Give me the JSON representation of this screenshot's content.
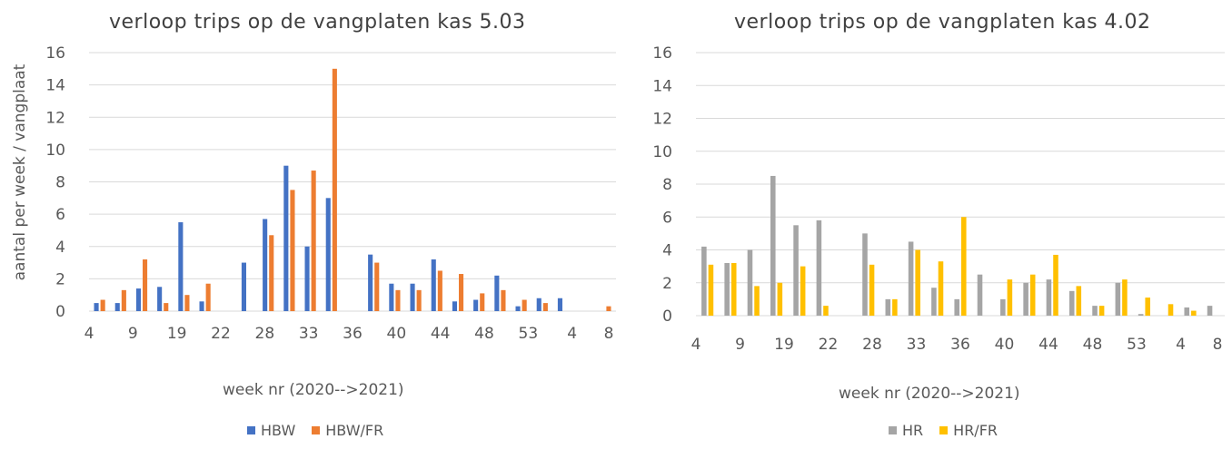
{
  "chart_data": [
    {
      "type": "bar",
      "title": "verloop trips op de vangplaten kas 5.03",
      "xlabel": "week nr (2020-->2021)",
      "ylabel": "aantal per week / vangplaat",
      "ylim": [
        0,
        16
      ],
      "yticks": [
        0,
        2,
        4,
        6,
        8,
        10,
        12,
        14,
        16
      ],
      "x_tick_labels": [
        "4",
        "9",
        "19",
        "22",
        "28",
        "33",
        "36",
        "40",
        "44",
        "48",
        "53",
        "4",
        "8"
      ],
      "legend_position": "bottom",
      "grid": true,
      "series": [
        {
          "name": "HBW",
          "color": "#4472C4",
          "values": [
            0.5,
            0.5,
            1.4,
            1.5,
            5.5,
            0.6,
            0,
            3.0,
            5.7,
            9.0,
            4.0,
            7.0,
            0,
            3.5,
            1.7,
            1.7,
            3.2,
            0.6,
            0.7,
            2.2,
            0.3,
            0.8,
            0.8,
            0,
            0
          ]
        },
        {
          "name": "HBW/FR",
          "color": "#ED7D31",
          "values": [
            0.7,
            1.3,
            3.2,
            0.5,
            1.0,
            1.7,
            0,
            0,
            4.7,
            7.5,
            8.7,
            15.0,
            0,
            3.0,
            1.3,
            1.3,
            2.5,
            2.3,
            1.1,
            1.3,
            0.7,
            0.5,
            0,
            0,
            0.3
          ]
        }
      ]
    },
    {
      "type": "bar",
      "title": "verloop trips op de vangplaten kas 4.02",
      "xlabel": "week nr (2020-->2021)",
      "ylabel": "",
      "ylim": [
        0,
        16
      ],
      "yticks": [
        0,
        2,
        4,
        6,
        8,
        10,
        12,
        14,
        16
      ],
      "x_tick_labels": [
        "4",
        "9",
        "19",
        "22",
        "28",
        "33",
        "36",
        "40",
        "44",
        "48",
        "53",
        "4",
        "8"
      ],
      "legend_position": "bottom",
      "grid": true,
      "series": [
        {
          "name": "HR",
          "color": "#A5A5A5",
          "values": [
            4.2,
            3.2,
            4.0,
            8.5,
            5.5,
            5.8,
            0,
            5.0,
            1.0,
            4.5,
            1.7,
            1.0,
            2.5,
            1.0,
            2.0,
            2.2,
            1.5,
            0.6,
            2.0,
            0.1,
            0,
            0.5,
            0.6
          ]
        },
        {
          "name": "HR/FR",
          "color": "#FFC000",
          "values": [
            3.1,
            3.2,
            1.8,
            2.0,
            3.0,
            0.6,
            0,
            3.1,
            1.0,
            4.0,
            3.3,
            6.0,
            0,
            2.2,
            2.5,
            3.7,
            1.8,
            0.6,
            2.2,
            1.1,
            0.7,
            0.3,
            0
          ]
        }
      ]
    }
  ]
}
